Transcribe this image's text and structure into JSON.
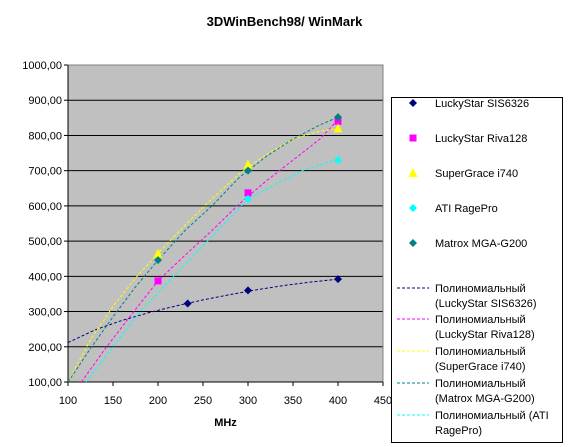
{
  "chart_data": {
    "type": "scatter",
    "title": "3DWinBench98/ WinMark",
    "xlabel": "MHz",
    "ylabel": "",
    "xlim": [
      100,
      450
    ],
    "ylim": [
      100,
      1000
    ],
    "xticks": [
      100,
      150,
      200,
      250,
      300,
      350,
      400,
      450
    ],
    "xtick_labels": [
      "100",
      "150",
      "200",
      "250",
      "300",
      "350",
      "400",
      "450"
    ],
    "yticks": [
      100,
      200,
      300,
      400,
      500,
      600,
      700,
      800,
      900,
      1000
    ],
    "ytick_labels": [
      "100,00",
      "200,00",
      "300,00",
      "400,00",
      "500,00",
      "600,00",
      "700,00",
      "800,00",
      "900,00",
      "1000,00"
    ],
    "grid": "horizontal",
    "legend_position": "right",
    "plot_background": "#c0c0c0",
    "series": [
      {
        "name": "LuckyStar SIS6326",
        "color": "#000080",
        "marker": "diamond",
        "x": [
          233,
          300,
          400
        ],
        "y": [
          323,
          360,
          392
        ]
      },
      {
        "name": "LuckyStar Riva128",
        "color": "#ff00ff",
        "marker": "square",
        "x": [
          200,
          300,
          400
        ],
        "y": [
          387,
          637,
          840
        ]
      },
      {
        "name": "SuperGrace i740",
        "color": "#ffff00",
        "marker": "triangle",
        "x": [
          200,
          300,
          400
        ],
        "y": [
          465,
          717,
          820
        ]
      },
      {
        "name": "ATI RagePro",
        "color": "#00ffff",
        "marker": "diamond",
        "x": [
          300,
          400
        ],
        "y": [
          620,
          730
        ]
      },
      {
        "name": "Matrox MGA-G200",
        "color": "#008080",
        "marker": "diamond",
        "x": [
          200,
          300,
          400
        ],
        "y": [
          446,
          700,
          852
        ]
      }
    ],
    "trendlines": [
      {
        "name": "Полиномиальный (LuckyStar SIS6326)",
        "color": "#000080",
        "x": [
          100,
          130,
          160,
          190,
          220,
          250,
          280,
          310,
          340,
          370,
          400
        ],
        "y": [
          212,
          248,
          275,
          297,
          316,
          333,
          348,
          362,
          374,
          384,
          392
        ]
      },
      {
        "name": "Полиномиальный (LuckyStar Riva128)",
        "color": "#ff00ff",
        "x": [
          115,
          140,
          170,
          200,
          230,
          260,
          290,
          320,
          350,
          380,
          400
        ],
        "y": [
          100,
          190,
          290,
          387,
          460,
          530,
          605,
          670,
          730,
          790,
          845
        ]
      },
      {
        "name": "Полиномиальный (SuperGrace i740)",
        "color": "#ffff00",
        "x": [
          100,
          125,
          150,
          175,
          200,
          230,
          260,
          290,
          320,
          350,
          380,
          400
        ],
        "y": [
          100,
          220,
          315,
          395,
          465,
          545,
          620,
          690,
          745,
          790,
          812,
          820
        ]
      },
      {
        "name": "Полиномиальный (Matrox MGA-G200)",
        "color": "#008080",
        "x": [
          100,
          125,
          150,
          175,
          200,
          230,
          260,
          290,
          320,
          350,
          380,
          400
        ],
        "y": [
          100,
          195,
          285,
          370,
          446,
          530,
          600,
          680,
          740,
          790,
          830,
          852
        ]
      },
      {
        "name": "Полиномиальный (ATI RagePro)",
        "color": "#00ffff",
        "x": [
          120,
          150,
          180,
          210,
          240,
          270,
          300,
          330,
          360,
          390,
          400
        ],
        "y": [
          100,
          200,
          300,
          380,
          460,
          540,
          620,
          660,
          700,
          725,
          730
        ]
      }
    ],
    "legend": [
      {
        "label": "LuckyStar SIS6326",
        "color": "#000080",
        "kind": "marker",
        "marker": "diamond"
      },
      {
        "label": "LuckyStar Riva128",
        "color": "#ff00ff",
        "kind": "marker",
        "marker": "square"
      },
      {
        "label": "SuperGrace i740",
        "color": "#ffff00",
        "kind": "marker",
        "marker": "triangle"
      },
      {
        "label": "ATI RagePro",
        "color": "#00ffff",
        "kind": "marker",
        "marker": "diamond"
      },
      {
        "label": "Matrox MGA-G200",
        "color": "#008080",
        "kind": "marker",
        "marker": "diamond"
      },
      {
        "label": [
          "Полиномиальный",
          "(LuckyStar SIS6326)"
        ],
        "color": "#000080",
        "kind": "line"
      },
      {
        "label": [
          "Полиномиальный",
          "(LuckyStar Riva128)"
        ],
        "color": "#ff00ff",
        "kind": "line"
      },
      {
        "label": [
          "Полиномиальный",
          "(SuperGrace i740)"
        ],
        "color": "#ffff00",
        "kind": "line"
      },
      {
        "label": [
          "Полиномиальный",
          "(Matrox MGA-G200)"
        ],
        "color": "#008080",
        "kind": "line"
      },
      {
        "label": [
          "Полиномиальный (ATI",
          "RagePro)"
        ],
        "color": "#00ffff",
        "kind": "line"
      }
    ]
  }
}
